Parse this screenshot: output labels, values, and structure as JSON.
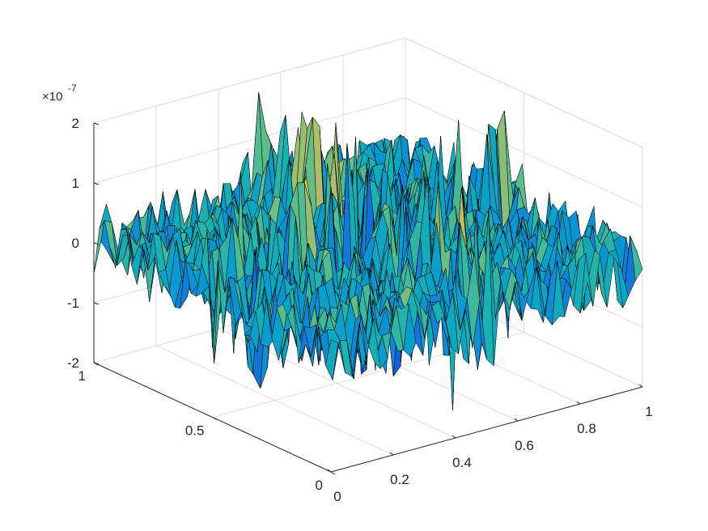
{
  "chart_data": {
    "type": "surface",
    "title": "",
    "xlabel": "",
    "ylabel": "",
    "zlabel": "",
    "x_ticks": [
      "0",
      "0.2",
      "0.4",
      "0.6",
      "0.8",
      "1"
    ],
    "y_ticks": [
      "0",
      "0.5",
      "1"
    ],
    "z_ticks": [
      "-2",
      "-1",
      "0",
      "1",
      "2"
    ],
    "z_exponent_prefix": "×10",
    "z_exponent": "-7",
    "xlim": [
      0,
      1
    ],
    "ylim": [
      0,
      1
    ],
    "zlim": [
      -2e-07,
      2e-07
    ],
    "grid": true,
    "colormap": "parula",
    "edge_color": "#000000",
    "surface_description_values": {
      "noise_amplitude": 1.2e-07,
      "ridge_x": 0.5,
      "ridge_y": 0.5,
      "ridge_amplitude": 1.5e-07
    }
  }
}
